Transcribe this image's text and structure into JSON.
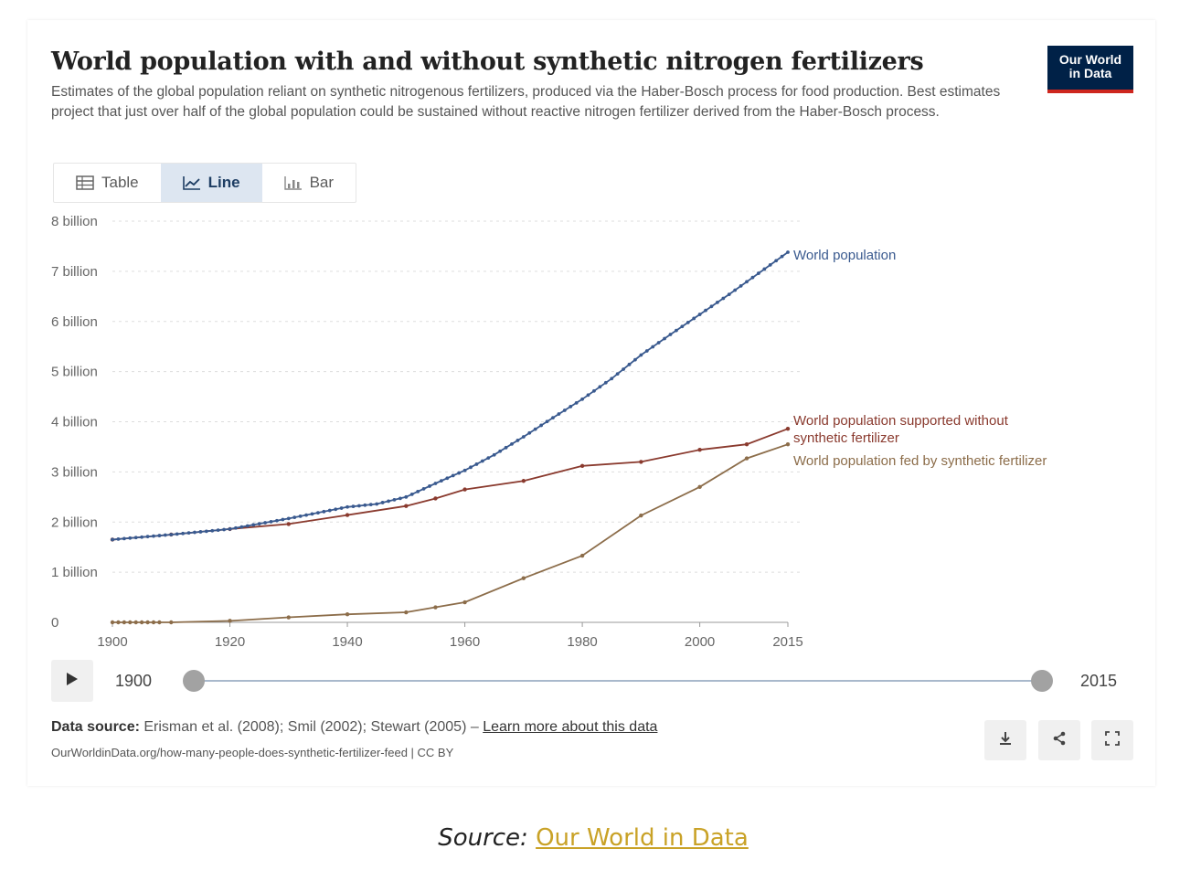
{
  "header": {
    "title": "World population with and without synthetic nitrogen fertilizers",
    "subtitle": "Estimates of the global population reliant on synthetic nitrogenous fertilizers, produced via the Haber-Bosch process for food production. Best estimates project that just over half of the global population could be sustained without reactive nitrogen fertilizer derived from the Haber-Bosch process.",
    "logo_line1": "Our World",
    "logo_line2": "in Data"
  },
  "tabs": [
    {
      "label": "Table",
      "icon": "table-icon",
      "active": false
    },
    {
      "label": "Line",
      "icon": "line-chart-icon",
      "active": true
    },
    {
      "label": "Bar",
      "icon": "bar-chart-icon",
      "active": false
    }
  ],
  "timeline": {
    "start_label": "1900",
    "end_label": "2015",
    "start_value": 1900,
    "end_value": 2015
  },
  "footer": {
    "source_label": "Data source:",
    "source_text": "Erisman et al. (2008); Smil (2002); Stewart (2005) –",
    "learn_more": "Learn more about this data",
    "url": "OurWorldinData.org/how-many-people-does-synthetic-fertilizer-feed | CC BY"
  },
  "caption": {
    "prefix": "Source:",
    "link": "Our World in Data"
  },
  "colors": {
    "world": "#3a5a8f",
    "without": "#8a3a2e",
    "fed": "#8c6d4a",
    "grid": "#dddddd",
    "axis_text": "#666666"
  },
  "chart_data": {
    "type": "line",
    "title": "World population with and without synthetic nitrogen fertilizers",
    "xlim": [
      1900,
      2015
    ],
    "ylim": [
      0,
      8000000000
    ],
    "x_ticks": [
      1900,
      1920,
      1940,
      1960,
      1980,
      2000,
      2015
    ],
    "x_tick_labels": [
      "1900",
      "1920",
      "1940",
      "1960",
      "1980",
      "2000",
      "2015"
    ],
    "y_ticks": [
      0,
      1000000000,
      2000000000,
      3000000000,
      4000000000,
      5000000000,
      6000000000,
      7000000000,
      8000000000
    ],
    "y_tick_labels": [
      "0",
      "1 billion",
      "2 billion",
      "3 billion",
      "4 billion",
      "5 billion",
      "6 billion",
      "7 billion",
      "8 billion"
    ],
    "grid": true,
    "series": [
      {
        "name": "World population",
        "color_key": "world",
        "dense_markers": true,
        "x": [
          1900,
          1910,
          1920,
          1930,
          1940,
          1945,
          1950,
          1955,
          1960,
          1965,
          1970,
          1975,
          1980,
          1985,
          1990,
          1995,
          2000,
          2005,
          2010,
          2015
        ],
        "y": [
          1650000000,
          1750000000,
          1860000000,
          2070000000,
          2300000000,
          2360000000,
          2500000000,
          2770000000,
          3030000000,
          3340000000,
          3700000000,
          4080000000,
          4450000000,
          4860000000,
          5330000000,
          5740000000,
          6140000000,
          6540000000,
          6960000000,
          7380000000
        ]
      },
      {
        "name": "World population supported without synthetic fertilizer",
        "color_key": "without",
        "dense_markers": false,
        "x": [
          1900,
          1910,
          1920,
          1930,
          1940,
          1950,
          1955,
          1960,
          1970,
          1980,
          1990,
          2000,
          2008,
          2015
        ],
        "y": [
          1650000000,
          1750000000,
          1860000000,
          1960000000,
          2140000000,
          2320000000,
          2470000000,
          2650000000,
          2820000000,
          3120000000,
          3200000000,
          3440000000,
          3550000000,
          3860000000
        ]
      },
      {
        "name": "World population fed by synthetic fertilizer",
        "color_key": "fed",
        "dense_markers": false,
        "x": [
          1900,
          1901,
          1902,
          1903,
          1904,
          1905,
          1906,
          1907,
          1908,
          1910,
          1920,
          1930,
          1940,
          1950,
          1955,
          1960,
          1970,
          1980,
          1990,
          2000,
          2008,
          2015
        ],
        "y": [
          0,
          0,
          0,
          0,
          0,
          0,
          0,
          0,
          0,
          0,
          30000000,
          100000000,
          160000000,
          200000000,
          300000000,
          400000000,
          880000000,
          1330000000,
          2130000000,
          2700000000,
          3270000000,
          3550000000
        ]
      }
    ],
    "series_labels": [
      {
        "lines": [
          "World population"
        ]
      },
      {
        "lines": [
          "World population supported without",
          "synthetic fertilizer"
        ]
      },
      {
        "lines": [
          "World population fed by synthetic fertilizer"
        ]
      }
    ]
  }
}
